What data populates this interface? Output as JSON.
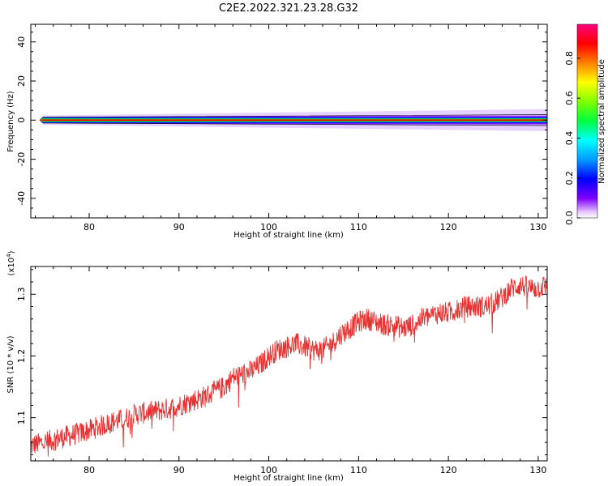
{
  "figure": {
    "title": "C2E2.2022.321.23.28.G32"
  },
  "chart_data": [
    {
      "type": "heatmap",
      "xlabel": "Height of straight line (km)",
      "ylabel": "Frequency (Hz)",
      "xlim": [
        73.5,
        131
      ],
      "ylim": [
        -50,
        49
      ],
      "xticks": [
        "80",
        "90",
        "100",
        "110",
        "120",
        "130"
      ],
      "yticks": [
        "40",
        "20",
        "0",
        "-20",
        "-40"
      ],
      "description_of_signal": "narrow band centered at 0 Hz spanning x 74.5 to 131, peak amplitude near 1.0 at center, spreading to about ±3 Hz at higher heights",
      "band": {
        "x_start": 74.5,
        "x_end": 131,
        "center_frequency": 0,
        "halfwidth_start_hz": 1.5,
        "halfwidth_end_hz": 3.5
      },
      "colorbar": {
        "label": "Normalized spectral amplitude",
        "ticks": [
          "0.0",
          "0.2",
          "0.4",
          "0.6",
          "0.8"
        ],
        "range": [
          0,
          0.97
        ],
        "colors": [
          "#f5e0ff",
          "#7f00ff",
          "#0000ff",
          "#00ffff",
          "#00ff00",
          "#ffff00",
          "#ff8000",
          "#ff0000",
          "#ff0080"
        ]
      }
    },
    {
      "type": "line",
      "xlabel": "Height of straight line (km)",
      "ylabel": "SNR (10 * v/v)",
      "scale_label": "(x10",
      "scale_exp": "4",
      "scale_close": ")",
      "xlim": [
        73.5,
        131
      ],
      "ylim": [
        1.03,
        1.345
      ],
      "xticks": [
        "80",
        "90",
        "100",
        "110",
        "120",
        "130"
      ],
      "yticks": [
        "1.1",
        "1.2",
        "1.3"
      ],
      "line_color": "#e83030",
      "series": [
        {
          "x": [
            73.5,
            75,
            77,
            79,
            81,
            83,
            84,
            85,
            87,
            89,
            91,
            93,
            95,
            96,
            97,
            98,
            99,
            100,
            101,
            102,
            103,
            104,
            105,
            106,
            107,
            108,
            109,
            110,
            111,
            112,
            113,
            114,
            115,
            116,
            117,
            118,
            119,
            120,
            121,
            122,
            123,
            124,
            125,
            126,
            127,
            128,
            129,
            130,
            131
          ],
          "y": [
            1.055,
            1.06,
            1.068,
            1.075,
            1.085,
            1.095,
            1.098,
            1.105,
            1.11,
            1.115,
            1.125,
            1.135,
            1.15,
            1.165,
            1.17,
            1.175,
            1.185,
            1.2,
            1.21,
            1.215,
            1.22,
            1.215,
            1.21,
            1.21,
            1.22,
            1.235,
            1.245,
            1.255,
            1.26,
            1.255,
            1.25,
            1.25,
            1.245,
            1.25,
            1.26,
            1.265,
            1.27,
            1.27,
            1.275,
            1.28,
            1.28,
            1.28,
            1.285,
            1.295,
            1.31,
            1.315,
            1.31,
            1.31,
            1.315
          ],
          "noise": 0.018
        }
      ]
    }
  ]
}
